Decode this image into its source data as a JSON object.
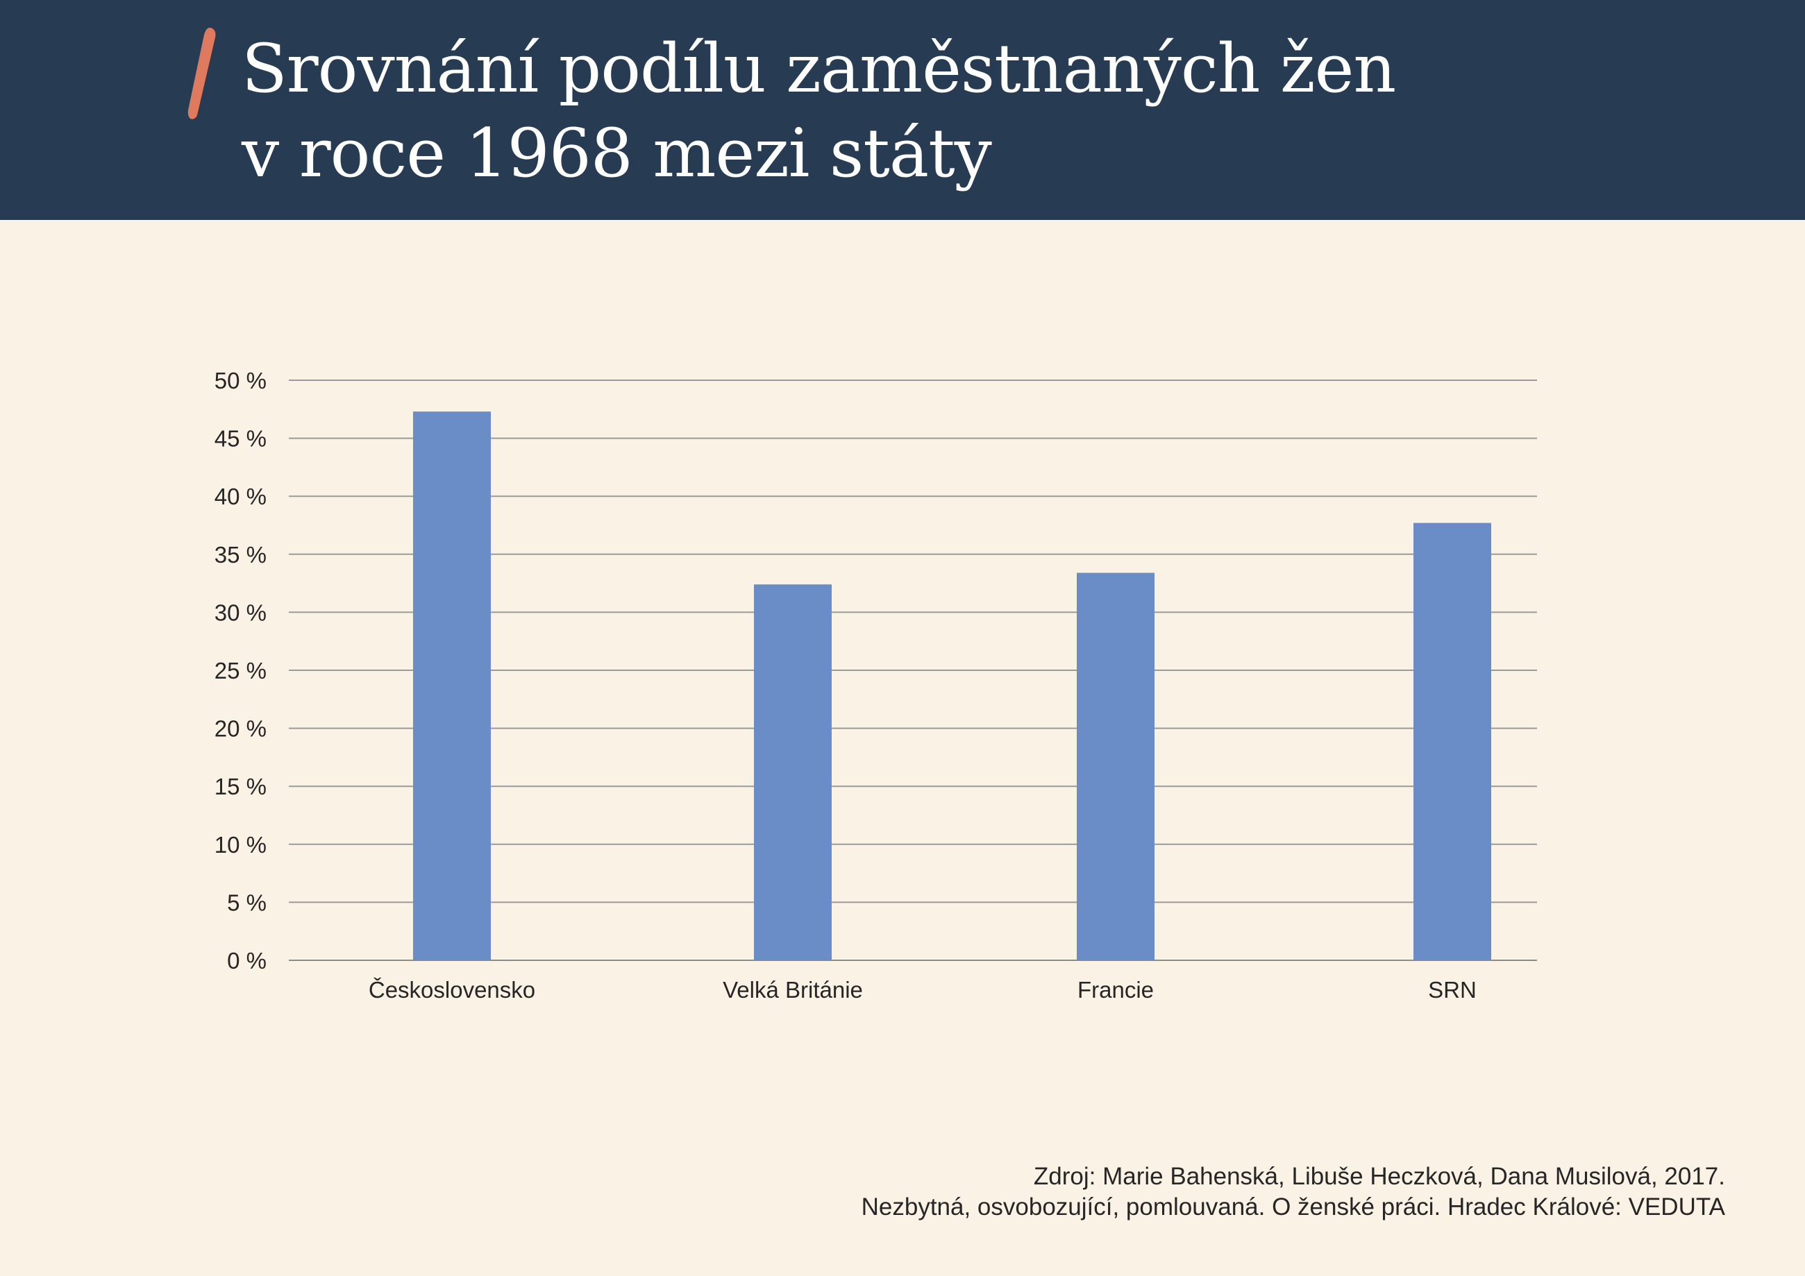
{
  "header": {
    "title_line1": "Srovnání podílu zaměstnaných žen",
    "title_line2": "v roce 1968 mezi státy",
    "accent_color": "#e07a5f",
    "background_color": "#273c52"
  },
  "source": {
    "line1": "Zdroj: Marie Bahenská, Libuše Heczková, Dana Musilová, 2017.",
    "line2": "Nezbytná, osvobozující, pomlouvaná. O ženské práci. Hradec Králové: VEDUTA"
  },
  "chart_data": {
    "type": "bar",
    "categories": [
      "Československo",
      "Velká Británie",
      "Francie",
      "SRN"
    ],
    "values": [
      47.3,
      32.4,
      33.4,
      37.7
    ],
    "ylim": [
      0,
      50
    ],
    "yticks": [
      "0 %",
      "5 %",
      "10 %",
      "15 %",
      "20 %",
      "25 %",
      "30 %",
      "35 %",
      "40 %",
      "45 %",
      "50 %"
    ],
    "xlabel": "",
    "ylabel": "",
    "grid": true,
    "legend": "none",
    "bar_color": "#6a8cc7"
  }
}
